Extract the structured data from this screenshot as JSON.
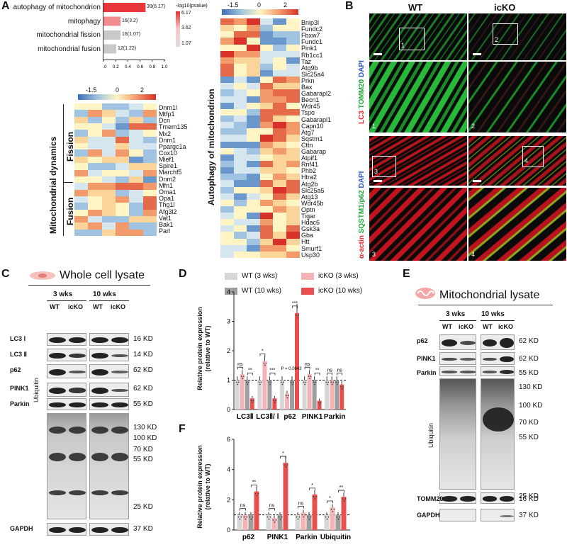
{
  "panel_labels": {
    "A": "A",
    "B": "B",
    "C": "C",
    "D": "D",
    "E": "E",
    "F": "F"
  },
  "panelA": {
    "go_bars": [
      {
        "term": "autophagy of mitochondrion",
        "label": "39(6.17)",
        "value": 0.69,
        "color": "#e8363a"
      },
      {
        "term": "mitophagy",
        "label": "16(3.2)",
        "value": 0.28,
        "color": "#f08b8e"
      },
      {
        "term": "mitochondrial fission",
        "label": "16(1.07)",
        "value": 0.28,
        "color": "#c9c9c9"
      },
      {
        "term": "mitochondrial fusion",
        "label": "12(1.22)",
        "value": 0.21,
        "color": "#c9c9c9"
      }
    ],
    "go_axis_ticks": [
      "0.0",
      "0.2",
      "0.4",
      "0.6",
      "0.8",
      "1.0"
    ],
    "go_legend": {
      "title": "-log10(pvalue)",
      "ticks": [
        "6.17",
        "3.62",
        "1.07"
      ]
    },
    "heat_scale_ticks": [
      "-1.5",
      "0",
      "2"
    ],
    "dynamics_title": "Mitochondrial dynamics",
    "fission_label": "Fission",
    "fusion_label": "Fusion",
    "fission_genes": [
      "Dnm1l",
      "Mtfp1",
      "Dcn",
      "Tmem135",
      "Mx2",
      "Dnm1",
      "Ppargc1a",
      "Cox10",
      "Mief1",
      "Spire1",
      "Marchf5",
      "Dnm2"
    ],
    "fusion_genes": [
      "Mfn1",
      "Oma1",
      "Opa1",
      "Thg1l",
      "Afg3l2",
      "Vat1",
      "Bak1",
      "Parl"
    ],
    "autophagy_title": "Autophagy of mitochondrion",
    "autophagy_genes": [
      "Bnip3l",
      "Fundc2",
      "Fbxw7",
      "Fundc1",
      "Pink1",
      "Rb1cc1",
      "Taz",
      "Atg9b",
      "Slc25a4",
      "Prkn",
      "Bax",
      "Gabarapl2",
      "Becn1",
      "Wdr45",
      "Tspo",
      "Gabarapl1",
      "Capn10",
      "Atg7",
      "Sqstm1",
      "Cttn",
      "Gabarap",
      "Atpif1",
      "Rnf41",
      "Phb2",
      "Htra2",
      "Atg2b",
      "Slc25a5",
      "Atg13",
      "Wdr45b",
      "Optn",
      "Tigar",
      "Hdac6",
      "Gsk3a",
      "Gba",
      "Htt",
      "Smurf1",
      "Usp30"
    ]
  },
  "panelB": {
    "col_wt": "WT",
    "col_ko": "icKO",
    "row1_labels": {
      "lc3": "LC3",
      "tomm20": "TOMM20",
      "dapi": "DAPI"
    },
    "row2_labels": {
      "actin": "α-actin",
      "sqstm": "SQSTM1/p62",
      "dapi": "DAPI"
    },
    "insets": [
      "1",
      "2",
      "3",
      "4"
    ]
  },
  "panelC": {
    "title": "Whole cell lysate",
    "groups": [
      "3 wks",
      "10 wks"
    ],
    "lanes": [
      "WT",
      "icKO",
      "WT",
      "icKO"
    ],
    "rows": [
      {
        "name": "LC3 Ⅰ",
        "kd": "16 KD"
      },
      {
        "name": "LC3 Ⅱ",
        "kd": "14 KD"
      },
      {
        "name": "p62",
        "kd": "62 KD"
      },
      {
        "name": "PINK1",
        "kd": "62 KD"
      },
      {
        "name": "Parkin",
        "kd": "55 KD"
      },
      {
        "name": "GAPDH",
        "kd": "37 KD"
      }
    ],
    "ubiquitin_label": "Ubiquitin",
    "ubiquitin_kd": [
      "130 KD",
      "100 KD",
      "70 KD",
      "55 KD",
      "25 KD"
    ]
  },
  "panelD": {
    "legend": [
      "WT (3 wks)",
      "icKO (3 wks)",
      "WT (10 wks)",
      "icKO (10 wks)"
    ],
    "ylabel_1": "Relative protein expression",
    "ylabel_2": "(relative to WT)",
    "annotation": "P = 0.0643",
    "chart_data": {
      "type": "bar",
      "categories": [
        "LC3Ⅱ",
        "LC3Ⅱ/ Ⅰ",
        "p62",
        "PINK1",
        "Parkin"
      ],
      "series": [
        {
          "name": "WT (3 wks)",
          "color": "#d6d6d6",
          "values": [
            1.0,
            1.0,
            1.0,
            1.0,
            1.0
          ]
        },
        {
          "name": "icKO (3 wks)",
          "color": "#f4b3b5",
          "values": [
            1.2,
            1.65,
            0.55,
            1.2,
            1.0
          ]
        },
        {
          "name": "WT (10 wks)",
          "color": "#9e9e9e",
          "values": [
            1.0,
            1.0,
            1.0,
            1.0,
            1.0
          ]
        },
        {
          "name": "icKO (10 wks)",
          "color": "#e8504f",
          "values": [
            0.38,
            0.38,
            3.28,
            0.3,
            0.85
          ]
        }
      ],
      "sig": [
        [
          "ns",
          "**"
        ],
        [
          "*",
          "***"
        ],
        [
          "",
          "***"
        ],
        [
          "ns",
          "**"
        ],
        [
          "ns",
          "ns"
        ]
      ],
      "ylim": [
        0,
        4
      ],
      "yticks": [
        "0",
        "1",
        "2",
        "3",
        "4"
      ]
    }
  },
  "panelE": {
    "title": "Mitochondrial lysate",
    "groups": [
      "3 wks",
      "10 wks"
    ],
    "lanes": [
      "WT",
      "icKO",
      "WT",
      "icKO"
    ],
    "rows": [
      {
        "name": "p62",
        "kd": "62 KD"
      },
      {
        "name": "PINK1",
        "kd": "62 KD"
      },
      {
        "name": "Parkin",
        "kd": "55 KD"
      },
      {
        "name": "TOMM20",
        "kd": "16 KD"
      },
      {
        "name": "GAPDH",
        "kd": "37 KD"
      }
    ],
    "ubiquitin_label": "Ubiquitin",
    "ubiquitin_kd": [
      "130 KD",
      "100 KD",
      "70 KD",
      "55 KD",
      "25 KD"
    ]
  },
  "panelF": {
    "ylabel_1": "Relative protein expression",
    "ylabel_2": "(relative to WT)",
    "chart_data": {
      "type": "bar",
      "categories": [
        "p62",
        "PINK1",
        "Parkin",
        "Ubiquitin"
      ],
      "series": [
        {
          "name": "WT (3 wks)",
          "color": "#d6d6d6",
          "values": [
            1.0,
            1.0,
            1.0,
            1.0
          ]
        },
        {
          "name": "icKO (3 wks)",
          "color": "#f4b3b5",
          "values": [
            1.0,
            0.8,
            1.15,
            1.5
          ]
        },
        {
          "name": "WT (10 wks)",
          "color": "#9e9e9e",
          "values": [
            1.0,
            1.0,
            1.0,
            1.0
          ]
        },
        {
          "name": "icKO (10 wks)",
          "color": "#e8504f",
          "values": [
            2.55,
            4.45,
            2.35,
            2.2
          ]
        }
      ],
      "sig": [
        [
          "ns",
          "**"
        ],
        [
          "ns",
          "*"
        ],
        [
          "ns",
          "*"
        ],
        [
          "*",
          "**"
        ]
      ],
      "ylim": [
        0,
        6
      ],
      "yticks": [
        "0",
        "2",
        "4",
        "6"
      ]
    }
  }
}
